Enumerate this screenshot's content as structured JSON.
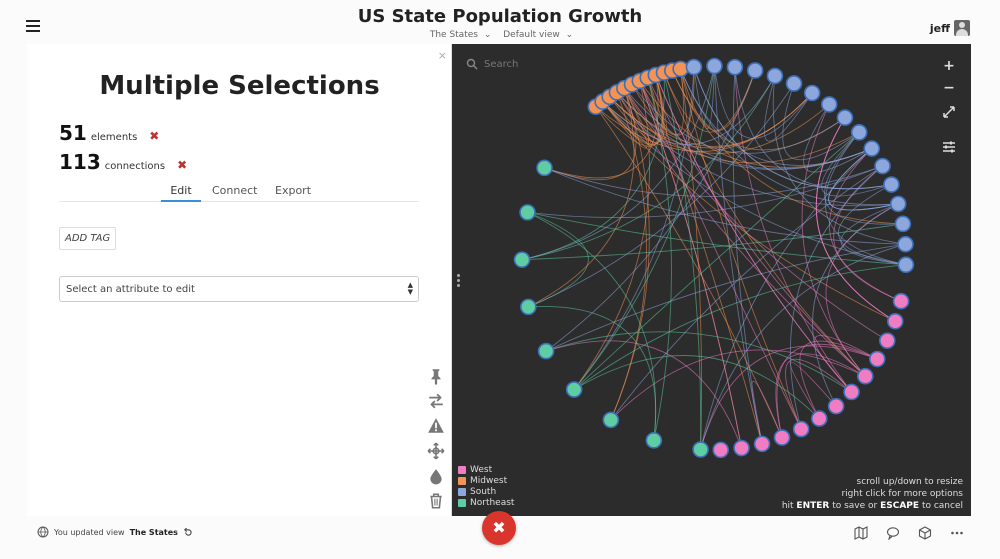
{
  "header": {
    "title": "US State Population Growth",
    "view_selector": "The States",
    "view_mode": "Default view",
    "user": "jeff"
  },
  "panel": {
    "heading": "Multiple Selections",
    "elements_count": "51",
    "elements_label": "elements",
    "connections_count": "113",
    "connections_label": "connections",
    "close_glyph": "×",
    "remove_glyph": "✖",
    "tabs": [
      {
        "label": "Edit",
        "active": true
      },
      {
        "label": "Connect",
        "active": false
      },
      {
        "label": "Export",
        "active": false
      }
    ],
    "add_tag_label": "ADD TAG",
    "attribute_select": "Select an attribute to edit",
    "tools": [
      "pin-icon",
      "swap-icon",
      "warning-icon",
      "move-icon",
      "drop-icon",
      "trash-icon"
    ]
  },
  "graph": {
    "search_placeholder": "Search",
    "zoom_in": "+",
    "zoom_out": "−",
    "legend": [
      {
        "label": "West",
        "color": "#f07dc4"
      },
      {
        "label": "Midwest",
        "color": "#f39355"
      },
      {
        "label": "South",
        "color": "#8da6dc"
      },
      {
        "label": "Northeast",
        "color": "#5fcca3"
      }
    ],
    "hints": {
      "line1": "scroll up/down to resize",
      "line2": "right click for more options",
      "line3_prefix": "hit",
      "line3_enter": "ENTER",
      "line3_mid": "to save or",
      "line3_escape": "ESCAPE",
      "line3_suffix": "to cancel"
    },
    "node_counts": {
      "Midwest": 12,
      "South": 17,
      "West": 13,
      "Northeast": 9
    }
  },
  "footer": {
    "status_prefix": "You updated view",
    "status_view": "The States",
    "close_glyph": "✖",
    "icons": [
      "map-icon",
      "comment-icon",
      "cube-icon",
      "more-icon"
    ]
  }
}
